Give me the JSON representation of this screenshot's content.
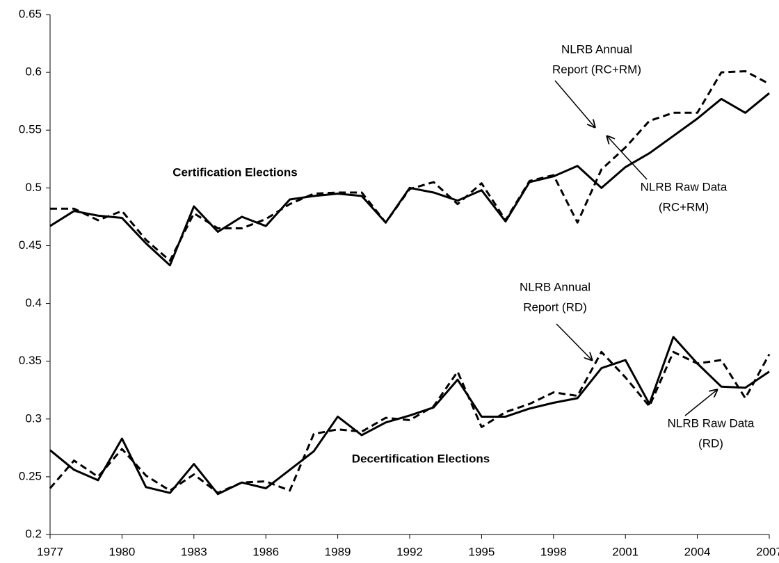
{
  "chart_data": {
    "type": "line",
    "x": [
      1977,
      1978,
      1979,
      1980,
      1981,
      1982,
      1983,
      1984,
      1985,
      1986,
      1987,
      1988,
      1989,
      1990,
      1991,
      1992,
      1993,
      1994,
      1995,
      1996,
      1997,
      1998,
      1999,
      2000,
      2001,
      2002,
      2003,
      2004,
      2005,
      2006,
      2007
    ],
    "series": [
      {
        "color": "#000000",
        "style": "solid",
        "values": [
          0.467,
          0.48,
          0.476,
          0.474,
          0.452,
          0.433,
          0.484,
          0.462,
          0.475,
          0.467,
          0.49,
          0.493,
          0.495,
          0.493,
          0.47,
          0.5,
          0.496,
          0.489,
          0.498,
          0.471,
          0.505,
          0.51,
          0.519,
          0.5,
          0.518,
          0.53,
          0.545,
          0.56,
          0.577,
          0.565,
          0.582
        ]
      },
      {
        "color": "#000000",
        "style": "dashed",
        "values": [
          0.482,
          0.482,
          0.472,
          0.48,
          0.455,
          0.437,
          0.478,
          0.465,
          0.465,
          0.473,
          0.486,
          0.495,
          0.496,
          0.496,
          0.47,
          0.499,
          0.505,
          0.486,
          0.504,
          0.472,
          0.506,
          0.511,
          0.47,
          0.516,
          0.535,
          0.558,
          0.565,
          0.565,
          0.6,
          0.601,
          0.59
        ]
      },
      {
        "color": "#000000",
        "style": "solid",
        "values": [
          0.273,
          0.256,
          0.247,
          0.283,
          0.241,
          0.236,
          0.261,
          0.235,
          0.245,
          0.24,
          0.256,
          0.272,
          0.302,
          0.286,
          0.297,
          0.303,
          0.31,
          0.334,
          0.302,
          0.302,
          0.309,
          0.314,
          0.318,
          0.344,
          0.351,
          0.313,
          0.371,
          0.348,
          0.328,
          0.327,
          0.341
        ]
      },
      {
        "color": "#000000",
        "style": "dashed",
        "values": [
          0.24,
          0.264,
          0.25,
          0.274,
          0.251,
          0.238,
          0.252,
          0.236,
          0.245,
          0.246,
          0.238,
          0.287,
          0.291,
          0.289,
          0.301,
          0.299,
          0.311,
          0.341,
          0.293,
          0.306,
          0.313,
          0.323,
          0.32,
          0.358,
          0.336,
          0.311,
          0.358,
          0.348,
          0.351,
          0.318,
          0.356
        ]
      }
    ],
    "xlim": [
      1977,
      2007
    ],
    "xticks": [
      1977,
      1980,
      1983,
      1986,
      1989,
      1992,
      1995,
      1998,
      2001,
      2004,
      2007
    ],
    "ylim": [
      0.2,
      0.65
    ],
    "yticks": [
      0.2,
      0.25,
      0.3,
      0.35,
      0.4,
      0.45,
      0.5,
      0.55,
      0.6,
      0.65
    ],
    "grid": false,
    "annotations": [
      {
        "lines": [
          "NLRB Annual",
          "Report (RC+RM)"
        ]
      },
      {
        "lines": [
          "NLRB Raw Data",
          "(RC+RM)"
        ]
      },
      {
        "lines": [
          "Certification Elections"
        ],
        "bold": true
      },
      {
        "lines": [
          "NLRB Annual",
          "Report (RD)"
        ]
      },
      {
        "lines": [
          "NLRB Raw Data",
          "(RD)"
        ]
      },
      {
        "lines": [
          "Decertification Elections"
        ],
        "bold": true
      }
    ]
  }
}
